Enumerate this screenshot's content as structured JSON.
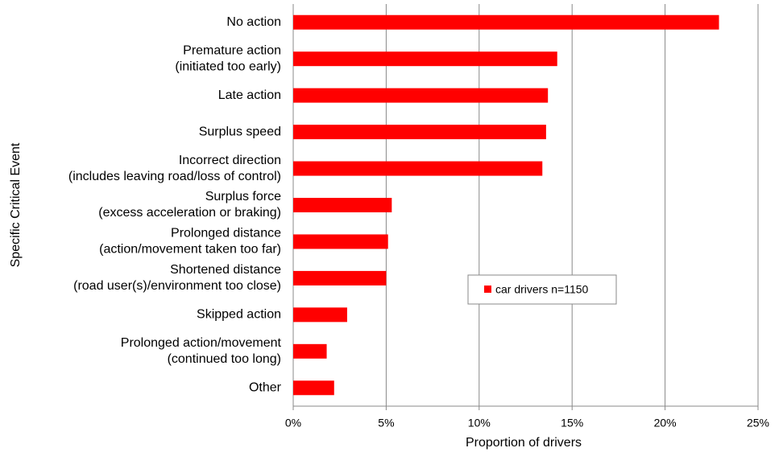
{
  "chart_data": {
    "type": "hbar",
    "categories": [
      [
        "No action"
      ],
      [
        "Premature action",
        "(initiated too early)"
      ],
      [
        "Late action"
      ],
      [
        "Surplus speed"
      ],
      [
        "Incorrect direction",
        "(includes leaving road/loss of control)"
      ],
      [
        "Surplus force",
        "(excess acceleration or braking)"
      ],
      [
        "Prolonged distance",
        "(action/movement taken too far)"
      ],
      [
        "Shortened distance",
        "(road user(s)/environment too close)"
      ],
      [
        "Skipped action"
      ],
      [
        "Prolonged action/movement",
        "(continued too long)"
      ],
      [
        "Other"
      ]
    ],
    "series": [
      {
        "name": "car drivers  n=1150",
        "color": "#ff0000",
        "values": [
          22.9,
          14.2,
          13.7,
          13.6,
          13.4,
          5.3,
          5.1,
          5.0,
          2.9,
          1.8,
          2.2
        ]
      }
    ],
    "xlim": [
      0,
      25
    ],
    "xticks": [
      {
        "value": 0,
        "label": "0%"
      },
      {
        "value": 5,
        "label": "5%"
      },
      {
        "value": 10,
        "label": "10%"
      },
      {
        "value": 15,
        "label": "15%"
      },
      {
        "value": 20,
        "label": "20%"
      },
      {
        "value": 25,
        "label": "25%"
      }
    ],
    "xlabel": "Proportion of drivers",
    "ylabel": "Specific Critical Event",
    "grid": true
  }
}
